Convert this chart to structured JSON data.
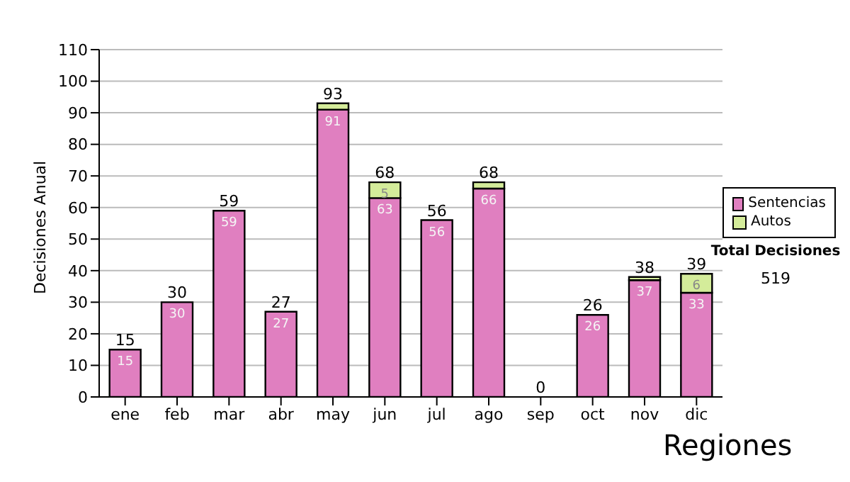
{
  "chart_data": {
    "type": "bar",
    "stacked": true,
    "ylabel": "Decisiones Anual",
    "categories": [
      "ene",
      "feb",
      "mar",
      "abr",
      "may",
      "jun",
      "jul",
      "ago",
      "sep",
      "oct",
      "nov",
      "dic"
    ],
    "series": [
      {
        "name": "Sentencias",
        "color": "#e07fc0",
        "values": [
          15,
          30,
          59,
          27,
          91,
          63,
          56,
          66,
          0,
          26,
          37,
          33
        ],
        "value_labels": [
          "15",
          "30",
          "59",
          "27",
          "91",
          "63",
          "56",
          "66",
          null,
          "26",
          "37",
          "33"
        ]
      },
      {
        "name": "Autos",
        "color": "#d4ec9a",
        "values": [
          0,
          0,
          0,
          0,
          2,
          5,
          0,
          2,
          0,
          0,
          1,
          6
        ],
        "value_labels": [
          null,
          null,
          null,
          null,
          null,
          "5",
          null,
          null,
          null,
          null,
          null,
          "6"
        ]
      }
    ],
    "totals": [
      "15",
      "30",
      "59",
      "27",
      "93",
      "68",
      "56",
      "68",
      "0",
      "26",
      "38",
      "39"
    ],
    "ylim": [
      0,
      110
    ],
    "yticks": [
      0,
      10,
      20,
      30,
      40,
      50,
      60,
      70,
      80,
      90,
      100,
      110
    ],
    "grid": "y",
    "legend": "right",
    "annotations": [
      "Total Decisiones",
      "519",
      "Regiones"
    ]
  }
}
